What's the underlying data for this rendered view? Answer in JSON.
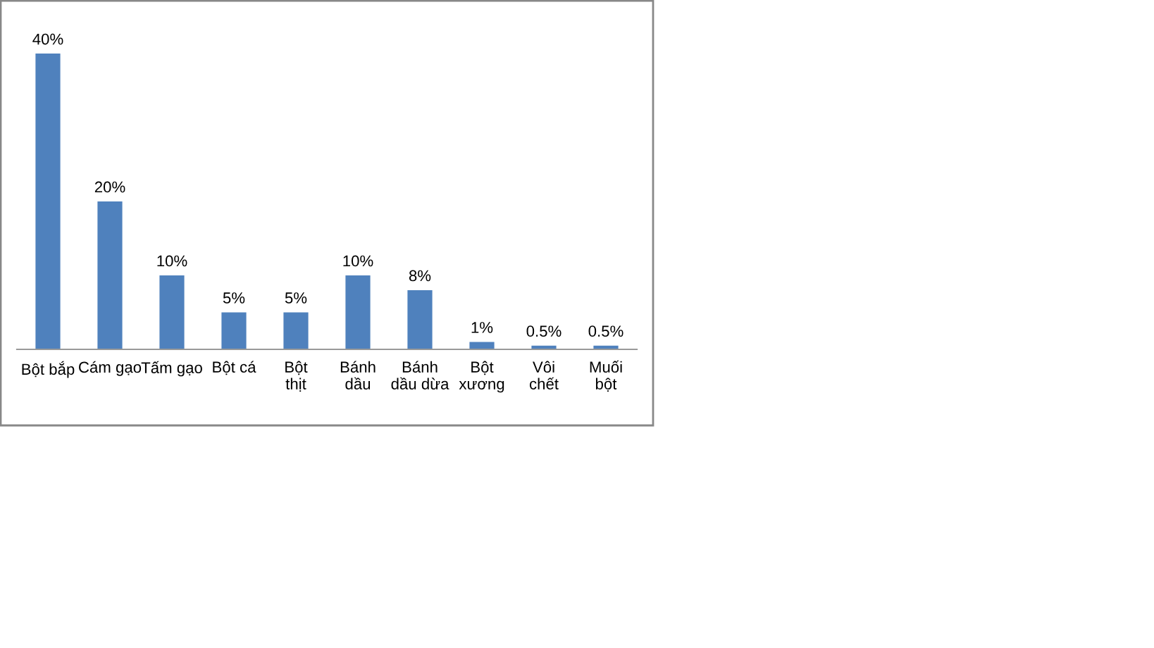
{
  "chart_data": {
    "type": "bar",
    "categories": [
      "Bột bắp",
      "Cám gạo",
      "Tấm gạo",
      "Bột cá",
      "Bột thịt",
      "Bánh dầu",
      "Bánh dầu dừa",
      "Bột xương",
      "Vôi chết",
      "Muối bột"
    ],
    "values": [
      40,
      20,
      10,
      5,
      5,
      10,
      8,
      1,
      0.5,
      0.5
    ],
    "value_labels": [
      "40%",
      "20%",
      "10%",
      "5%",
      "5%",
      "10%",
      "8%",
      "1%",
      "0.5%",
      "0.5%"
    ],
    "color": "#4f81bd",
    "grid": false,
    "legend": false
  }
}
